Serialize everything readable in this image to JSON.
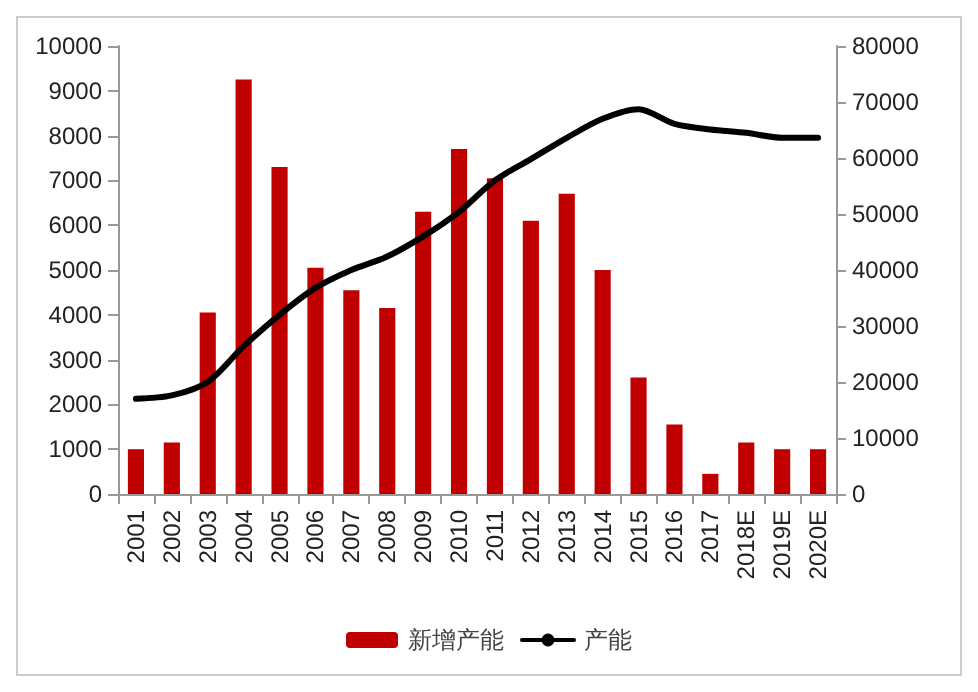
{
  "chart_data": {
    "type": "bar",
    "categories": [
      "2001",
      "2002",
      "2003",
      "2004",
      "2005",
      "2006",
      "2007",
      "2008",
      "2009",
      "2010",
      "2011",
      "2012",
      "2013",
      "2014",
      "2015",
      "2016",
      "2017",
      "2018E",
      "2019E",
      "2020E"
    ],
    "series": [
      {
        "name": "新增产能",
        "color": "#c00000",
        "values": [
          1000,
          1150,
          4050,
          9250,
          7300,
          5050,
          4550,
          4150,
          6300,
          7700,
          7050,
          6100,
          6700,
          5000,
          2600,
          1550,
          450,
          1150,
          1000,
          1000
        ]
      },
      {
        "name": "产能",
        "type": "line",
        "axis": "y2",
        "color": "#000000",
        "values": [
          17000,
          17600,
          20000,
          26400,
          32000,
          36800,
          40000,
          42400,
          46000,
          50400,
          56000,
          59800,
          63600,
          67000,
          68700,
          66100,
          65100,
          64500,
          63600,
          63600
        ]
      }
    ],
    "ylim": [
      0,
      10000
    ],
    "yticks": [
      0,
      1000,
      2000,
      3000,
      4000,
      5000,
      6000,
      7000,
      8000,
      9000,
      10000
    ],
    "y2lim": [
      0,
      80000
    ],
    "y2ticks": [
      0,
      10000,
      20000,
      30000,
      40000,
      50000,
      60000,
      70000,
      80000
    ],
    "grid": false,
    "legend": "bottom",
    "marker": "none",
    "line_style": "solid"
  }
}
